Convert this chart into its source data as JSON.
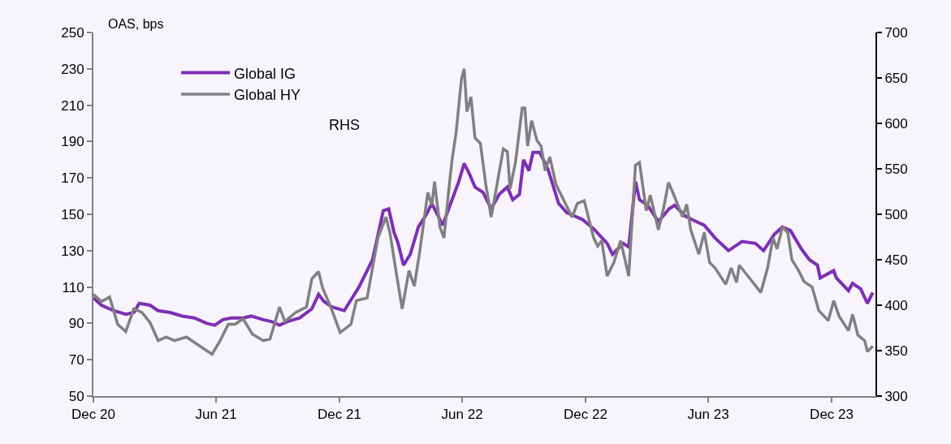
{
  "chart_data": {
    "type": "line",
    "ylabel": "OAS, bps",
    "annotations": [
      "RHS"
    ],
    "xlim": [
      "2020-12-01",
      "2024-02-04"
    ],
    "xticks": [
      {
        "value": "2020-12-01",
        "label": "Dec 20"
      },
      {
        "value": "2021-06-01",
        "label": "Jun 21"
      },
      {
        "value": "2021-12-01",
        "label": "Dec 21"
      },
      {
        "value": "2022-06-01",
        "label": "Jun 22"
      },
      {
        "value": "2022-12-01",
        "label": "Dec 22"
      },
      {
        "value": "2023-06-01",
        "label": "Jun 23"
      },
      {
        "value": "2023-12-01",
        "label": "Dec 23"
      }
    ],
    "ylim": [
      50,
      250
    ],
    "yticks": [
      50,
      70,
      90,
      110,
      130,
      150,
      170,
      190,
      210,
      230,
      250
    ],
    "y2lim": [
      300,
      700
    ],
    "y2ticks": [
      300,
      350,
      400,
      450,
      500,
      550,
      600,
      650,
      700
    ],
    "grid": false,
    "legend": "top left",
    "marker": "none",
    "line_style": "solid",
    "series": [
      {
        "name": "Global IG",
        "color": "#7e2fb5",
        "x": [
          "2020-12-01",
          "2020-12-13",
          "2020-12-31",
          "2021-01-18",
          "2021-01-30",
          "2021-02-07",
          "2021-02-23",
          "2021-03-07",
          "2021-03-25",
          "2021-04-12",
          "2021-04-30",
          "2021-05-18",
          "2021-05-30",
          "2021-06-11",
          "2021-06-23",
          "2021-07-11",
          "2021-07-23",
          "2021-08-10",
          "2021-08-22",
          "2021-09-03",
          "2021-09-15",
          "2021-10-03",
          "2021-10-21",
          "2021-10-31",
          "2021-11-08",
          "2021-11-20",
          "2021-12-08",
          "2021-12-30",
          "2022-01-19",
          "2022-01-25",
          "2022-02-04",
          "2022-02-12",
          "2022-02-20",
          "2022-02-26",
          "2022-03-06",
          "2022-03-16",
          "2022-03-28",
          "2022-04-09",
          "2022-04-17",
          "2022-05-03",
          "2022-05-15",
          "2022-05-27",
          "2022-06-04",
          "2022-06-12",
          "2022-06-20",
          "2022-07-02",
          "2022-07-14",
          "2022-07-26",
          "2022-08-07",
          "2022-08-15",
          "2022-08-25",
          "2022-08-31",
          "2022-09-08",
          "2022-09-14",
          "2022-09-24",
          "2022-10-06",
          "2022-10-22",
          "2022-11-03",
          "2022-11-27",
          "2022-12-13",
          "2023-01-02",
          "2023-01-10",
          "2023-01-26",
          "2023-02-03",
          "2023-02-13",
          "2023-02-19",
          "2023-03-03",
          "2023-03-19",
          "2023-04-04",
          "2023-04-12",
          "2023-04-28",
          "2023-05-14",
          "2023-05-26",
          "2023-06-11",
          "2023-07-01",
          "2023-07-21",
          "2023-08-10",
          "2023-08-22",
          "2023-09-07",
          "2023-09-19",
          "2023-10-01",
          "2023-10-17",
          "2023-10-29",
          "2023-11-10",
          "2023-11-14",
          "2023-12-04",
          "2023-12-08",
          "2023-12-26",
          "2024-01-01",
          "2024-01-13",
          "2024-01-23",
          "2024-01-31"
        ],
        "values": [
          104,
          100,
          97,
          95,
          96,
          101,
          100,
          97,
          96,
          94,
          93,
          90,
          89,
          92,
          93,
          93,
          94,
          92,
          91,
          89,
          91,
          93,
          98,
          106,
          102,
          99,
          97,
          110,
          125,
          135,
          152,
          153,
          140,
          134,
          122,
          128,
          143,
          150,
          156,
          144,
          156,
          168,
          178,
          172,
          165,
          162,
          153,
          161,
          165,
          158,
          161,
          180,
          174,
          184,
          184,
          175,
          156,
          151,
          147,
          142,
          134,
          128,
          134,
          132,
          168,
          158,
          155,
          146,
          153,
          155,
          149,
          146,
          144,
          137,
          130,
          135,
          134,
          130,
          139,
          143,
          141,
          131,
          125,
          122,
          115,
          119,
          115,
          108,
          112,
          109,
          101,
          107
        ]
      },
      {
        "name": "Global HY",
        "color": "#808080",
        "axis": "y2",
        "x": [
          "2020-12-01",
          "2020-12-13",
          "2020-12-25",
          "2021-01-06",
          "2021-01-18",
          "2021-01-30",
          "2021-02-11",
          "2021-02-23",
          "2021-03-07",
          "2021-03-19",
          "2021-03-31",
          "2021-04-18",
          "2021-05-06",
          "2021-05-26",
          "2021-06-07",
          "2021-06-19",
          "2021-06-29",
          "2021-07-11",
          "2021-07-25",
          "2021-08-10",
          "2021-08-20",
          "2021-09-03",
          "2021-09-11",
          "2021-09-27",
          "2021-10-13",
          "2021-10-21",
          "2021-10-31",
          "2021-11-06",
          "2021-11-18",
          "2021-12-02",
          "2021-12-18",
          "2021-12-26",
          "2022-01-11",
          "2022-01-27",
          "2022-02-08",
          "2022-02-14",
          "2022-02-24",
          "2022-03-04",
          "2022-03-14",
          "2022-03-22",
          "2022-03-30",
          "2022-04-11",
          "2022-04-17",
          "2022-04-21",
          "2022-04-29",
          "2022-05-05",
          "2022-05-13",
          "2022-05-17",
          "2022-05-23",
          "2022-05-31",
          "2022-06-04",
          "2022-06-08",
          "2022-06-14",
          "2022-06-20",
          "2022-06-28",
          "2022-07-06",
          "2022-07-14",
          "2022-07-22",
          "2022-08-01",
          "2022-08-07",
          "2022-08-11",
          "2022-08-19",
          "2022-08-29",
          "2022-09-02",
          "2022-09-06",
          "2022-09-12",
          "2022-09-20",
          "2022-09-26",
          "2022-10-02",
          "2022-10-09",
          "2022-10-18",
          "2022-10-30",
          "2022-11-11",
          "2022-11-19",
          "2022-11-29",
          "2022-12-13",
          "2022-12-19",
          "2022-12-25",
          "2023-01-02",
          "2023-01-12",
          "2023-01-22",
          "2023-02-03",
          "2023-02-13",
          "2023-02-19",
          "2023-03-01",
          "2023-03-07",
          "2023-03-19",
          "2023-03-27",
          "2023-04-03",
          "2023-04-10",
          "2023-04-24",
          "2023-04-30",
          "2023-05-06",
          "2023-05-18",
          "2023-05-26",
          "2023-06-03",
          "2023-06-11",
          "2023-06-27",
          "2023-07-05",
          "2023-07-13",
          "2023-07-17",
          "2023-08-02",
          "2023-08-18",
          "2023-08-28",
          "2023-09-05",
          "2023-09-11",
          "2023-09-19",
          "2023-09-27",
          "2023-10-03",
          "2023-10-13",
          "2023-10-21",
          "2023-11-02",
          "2023-11-12",
          "2023-11-26",
          "2023-12-04",
          "2023-12-12",
          "2023-12-26",
          "2024-01-01",
          "2024-01-09",
          "2024-01-19",
          "2024-01-23",
          "2024-01-31"
        ],
        "values": [
          412,
          404,
          409,
          379,
          371,
          396,
          392,
          381,
          361,
          365,
          361,
          365,
          356,
          346,
          361,
          379,
          379,
          385,
          368,
          361,
          363,
          398,
          382,
          392,
          398,
          429,
          437,
          419,
          398,
          370,
          379,
          405,
          408,
          474,
          497,
          479,
          432,
          396,
          438,
          421,
          459,
          524,
          510,
          536,
          486,
          474,
          533,
          560,
          590,
          649,
          660,
          613,
          629,
          584,
          578,
          533,
          497,
          530,
          572,
          569,
          528,
          557,
          617,
          617,
          575,
          603,
          581,
          575,
          548,
          563,
          533,
          515,
          497,
          512,
          515,
          474,
          465,
          471,
          432,
          447,
          471,
          432,
          554,
          557,
          504,
          521,
          483,
          508,
          535,
          523,
          497,
          511,
          483,
          456,
          480,
          447,
          441,
          423,
          441,
          425,
          444,
          429,
          414,
          441,
          474,
          462,
          486,
          480,
          450,
          438,
          426,
          420,
          394,
          383,
          405,
          388,
          372,
          390,
          367,
          361,
          349,
          355
        ]
      }
    ]
  }
}
